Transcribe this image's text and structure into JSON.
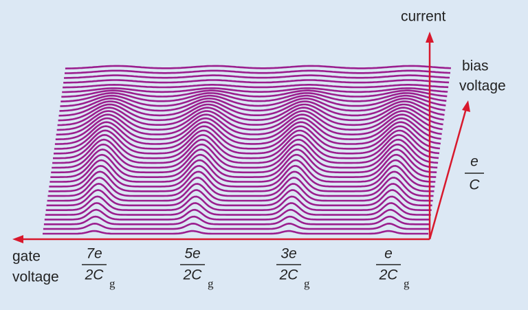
{
  "axes": {
    "current": "current",
    "bias": [
      "bias",
      "voltage"
    ],
    "gate": [
      "gate",
      "voltage"
    ]
  },
  "bias_scale": {
    "numerator": "e",
    "denominator": "C"
  },
  "gate_ticks": [
    {
      "numerator": "7e",
      "denominator": "2C",
      "subscript": "g"
    },
    {
      "numerator": "5e",
      "denominator": "2C",
      "subscript": "g"
    },
    {
      "numerator": "3e",
      "denominator": "2C",
      "subscript": "g"
    },
    {
      "numerator": "e",
      "denominator": "2C",
      "subscript": "g"
    }
  ]
}
